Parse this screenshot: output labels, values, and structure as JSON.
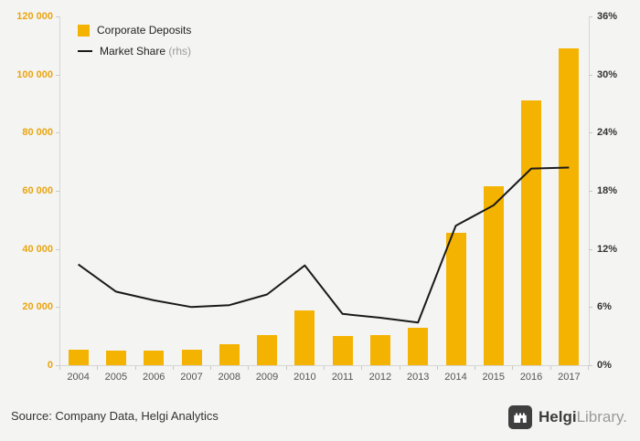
{
  "chart_data": {
    "type": "bar",
    "categories": [
      "2004",
      "2005",
      "2006",
      "2007",
      "2008",
      "2009",
      "2010",
      "2011",
      "2012",
      "2013",
      "2014",
      "2015",
      "2016",
      "2017"
    ],
    "series": [
      {
        "name": "Corporate Deposits",
        "type": "bar",
        "axis": "left",
        "color": "#F5B301",
        "values": [
          5300,
          5000,
          5000,
          5300,
          7300,
          10400,
          19000,
          10000,
          10400,
          13000,
          45500,
          61500,
          91000,
          109000
        ]
      },
      {
        "name": "Market Share (rhs)",
        "type": "line",
        "axis": "right",
        "color": "#1a1a1a",
        "values": [
          10.4,
          7.6,
          6.7,
          6.0,
          6.2,
          7.3,
          10.3,
          5.3,
          4.9,
          4.4,
          14.4,
          16.5,
          20.3,
          20.4
        ]
      }
    ],
    "title": "",
    "xlabel": "",
    "ylabel": "",
    "left_axis": {
      "min": 0,
      "max": 120000,
      "step": 20000,
      "tick_labels": [
        "0",
        "20 000",
        "40 000",
        "60 000",
        "80 000",
        "100 000",
        "120 000"
      ]
    },
    "right_axis": {
      "min": 0,
      "max": 36,
      "step": 6,
      "tick_labels": [
        "0%",
        "6%",
        "12%",
        "18%",
        "24%",
        "30%",
        "36%"
      ]
    },
    "grid": false,
    "legend_position": "top-left"
  },
  "legend": {
    "bar_label": "Corporate Deposits",
    "line_label": "Market Share",
    "line_label_suffix": " (rhs)"
  },
  "footer": {
    "source": "Source: Company Data, Helgi Analytics",
    "logo_bold": "Helgi",
    "logo_light": "Library."
  },
  "colors": {
    "bar": "#F5B301",
    "line": "#1a1a1a",
    "left_axis_labels": "#E9A512",
    "right_axis_labels": "#333333",
    "background": "#f4f4f2"
  }
}
